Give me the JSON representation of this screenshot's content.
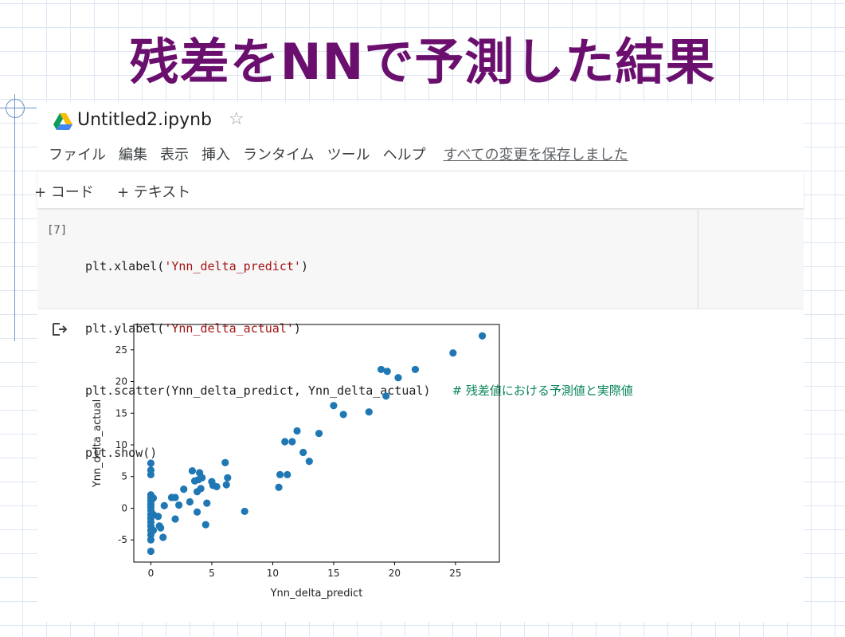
{
  "slide": {
    "title": "残差をNNで予測した結果"
  },
  "notebook": {
    "filename": "Untitled2.ipynb",
    "star_icon": "star-icon",
    "menu": [
      "ファイル",
      "編集",
      "表示",
      "挿入",
      "ランタイム",
      "ツール",
      "ヘルプ"
    ],
    "save_status": "すべての変更を保存しました",
    "toolbar": {
      "add_code": "+ コード",
      "add_text": "+ テキスト"
    }
  },
  "cell": {
    "exec_count": "[7]",
    "lines": [
      {
        "prefix": "plt.xlabel(",
        "string": "'Ynn_delta_predict'",
        "suffix": ")"
      },
      {
        "prefix": "plt.ylabel(",
        "string": "'Ynn_delta_actual'",
        "suffix": ")"
      },
      {
        "prefix": "plt.scatter(Ynn_delta_predict, Ynn_delta_actual)   ",
        "comment": "# 残差値における予測値と実際値"
      },
      {
        "prefix": "plt.show()"
      }
    ]
  },
  "output": {
    "icon": "output-arrow-icon"
  },
  "chart_data": {
    "type": "scatter",
    "xlabel": "Ynn_delta_predict",
    "ylabel": "Ynn_delta_actual",
    "xlim": [
      -1.4,
      28.6
    ],
    "ylim": [
      -8.5,
      29.0
    ],
    "xticks": [
      0,
      5,
      10,
      15,
      20,
      25
    ],
    "yticks": [
      -5,
      0,
      5,
      10,
      15,
      20,
      25
    ],
    "grid": false,
    "color": "#1f77b4",
    "points": [
      [
        0,
        7.1
      ],
      [
        0,
        6.0
      ],
      [
        0,
        5.3
      ],
      [
        0,
        2.1
      ],
      [
        0,
        1.6
      ],
      [
        0,
        1.1
      ],
      [
        0,
        0.6
      ],
      [
        0,
        0.2
      ],
      [
        0,
        -0.3
      ],
      [
        0,
        -1.0
      ],
      [
        0,
        -1.6
      ],
      [
        0,
        -2.2
      ],
      [
        0,
        -2.8
      ],
      [
        0,
        -3.5
      ],
      [
        0,
        -4.2
      ],
      [
        0,
        -5.0
      ],
      [
        0,
        -6.8
      ],
      [
        0.2,
        1.6
      ],
      [
        0.2,
        -1.0
      ],
      [
        0.2,
        -3.5
      ],
      [
        0.6,
        -1.3
      ],
      [
        0.7,
        -2.8
      ],
      [
        0.8,
        -3.1
      ],
      [
        1.0,
        -4.6
      ],
      [
        1.1,
        0.4
      ],
      [
        1.7,
        1.7
      ],
      [
        2.0,
        1.7
      ],
      [
        2.0,
        -1.7
      ],
      [
        2.3,
        0.5
      ],
      [
        2.7,
        3.0
      ],
      [
        3.2,
        1.0
      ],
      [
        3.4,
        5.9
      ],
      [
        3.6,
        4.3
      ],
      [
        3.8,
        2.6
      ],
      [
        3.8,
        -0.6
      ],
      [
        3.9,
        4.5
      ],
      [
        4.0,
        5.6
      ],
      [
        4.1,
        3.1
      ],
      [
        4.2,
        4.8
      ],
      [
        4.5,
        -2.6
      ],
      [
        4.6,
        0.8
      ],
      [
        5.0,
        4.2
      ],
      [
        5.1,
        3.6
      ],
      [
        5.4,
        3.4
      ],
      [
        6.1,
        7.2
      ],
      [
        6.2,
        3.7
      ],
      [
        6.3,
        4.8
      ],
      [
        7.7,
        -0.5
      ],
      [
        10.5,
        3.3
      ],
      [
        10.6,
        5.3
      ],
      [
        11.0,
        10.5
      ],
      [
        11.2,
        5.3
      ],
      [
        11.6,
        10.5
      ],
      [
        12.0,
        12.2
      ],
      [
        12.5,
        8.8
      ],
      [
        13.0,
        7.4
      ],
      [
        13.8,
        11.8
      ],
      [
        15.0,
        16.2
      ],
      [
        15.8,
        14.8
      ],
      [
        17.9,
        15.2
      ],
      [
        18.9,
        21.9
      ],
      [
        19.3,
        17.7
      ],
      [
        19.4,
        21.6
      ],
      [
        20.3,
        20.6
      ],
      [
        21.7,
        21.9
      ],
      [
        24.8,
        24.5
      ],
      [
        27.2,
        27.2
      ]
    ]
  }
}
